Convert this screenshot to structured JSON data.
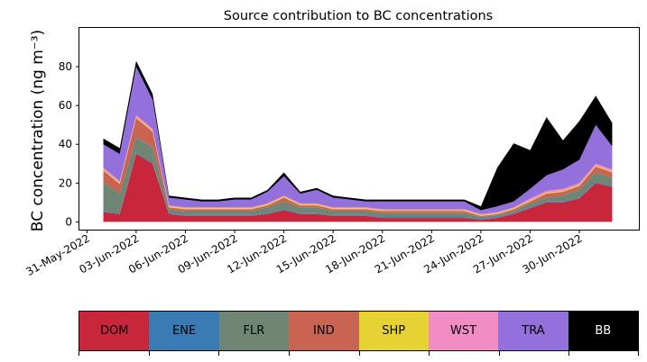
{
  "chart_data": {
    "type": "area",
    "title": "Source contribution to BC concentrations",
    "ylabel": "BC concentration (ng m⁻³)",
    "xlabel": "",
    "ylim": [
      -4,
      100
    ],
    "xlim": [
      "2022-05-30T13:00",
      "2022-07-03T15:00"
    ],
    "yticks": [
      0,
      20,
      40,
      60,
      80
    ],
    "xticks": [
      "2022-05-31",
      "2022-06-03",
      "2022-06-06",
      "2022-06-09",
      "2022-06-12",
      "2022-06-15",
      "2022-06-18",
      "2022-06-21",
      "2022-06-24",
      "2022-06-27",
      "2022-06-30"
    ],
    "xtick_labels": [
      "31-May-2022",
      "03-Jun-2022",
      "06-Jun-2022",
      "09-Jun-2022",
      "12-Jun-2022",
      "15-Jun-2022",
      "18-Jun-2022",
      "21-Jun-2022",
      "24-Jun-2022",
      "27-Jun-2022",
      "30-Jun-2022"
    ],
    "grid": false,
    "stack_order": [
      "DOM",
      "ENE",
      "FLR",
      "IND",
      "SHP",
      "WST",
      "TRA",
      "BB"
    ],
    "series_colors": {
      "DOM": "#c8263a",
      "ENE": "#3a7bb5",
      "FLR": "#6e8673",
      "IND": "#c96452",
      "SHP": "#e6d232",
      "WST": "#f18cc4",
      "TRA": "#9370db",
      "BB": "#000000"
    },
    "x": [
      "2022-06-01",
      "2022-06-02",
      "2022-06-03",
      "2022-06-04",
      "2022-06-05",
      "2022-06-06",
      "2022-06-07",
      "2022-06-08",
      "2022-06-09",
      "2022-06-10",
      "2022-06-11",
      "2022-06-12",
      "2022-06-13",
      "2022-06-14",
      "2022-06-15",
      "2022-06-16",
      "2022-06-17",
      "2022-06-18",
      "2022-06-19",
      "2022-06-20",
      "2022-06-21",
      "2022-06-22",
      "2022-06-23",
      "2022-06-24",
      "2022-06-25",
      "2022-06-26",
      "2022-06-27",
      "2022-06-28",
      "2022-06-29",
      "2022-06-30",
      "2022-07-01",
      "2022-07-02"
    ],
    "series": [
      {
        "name": "DOM",
        "values": [
          5,
          4,
          35,
          30,
          4,
          3,
          3,
          3,
          3,
          3,
          4,
          6,
          4,
          4,
          3,
          3,
          3,
          2,
          2,
          2,
          2,
          2,
          2,
          1,
          2,
          4,
          7,
          10,
          10,
          12,
          20,
          18
        ]
      },
      {
        "name": "ENE",
        "values": [
          0.5,
          0.5,
          0.5,
          0.5,
          0.5,
          0.5,
          0.5,
          0.5,
          0.5,
          0.5,
          0.5,
          0.5,
          0.5,
          0.5,
          0.5,
          0.5,
          0.5,
          0.5,
          0.5,
          0.5,
          0.5,
          0.5,
          0.5,
          0.5,
          0.5,
          0.5,
          0.5,
          0.5,
          0.5,
          0.5,
          0.5,
          0.5
        ]
      },
      {
        "name": "FLR",
        "values": [
          15,
          10,
          8,
          8,
          2,
          2,
          2,
          2,
          2,
          2,
          3,
          4,
          3,
          3,
          2,
          2,
          2,
          2,
          2,
          2,
          2,
          2,
          2,
          1,
          1,
          1,
          2,
          2,
          3,
          4,
          5,
          4
        ]
      },
      {
        "name": "IND",
        "values": [
          6,
          5,
          10,
          8,
          1,
          1,
          1,
          1,
          1,
          1,
          1,
          2,
          1,
          1,
          1,
          1,
          1,
          1,
          1,
          1,
          1,
          1,
          1,
          0.5,
          0.5,
          1,
          1,
          2,
          2,
          2,
          3,
          3
        ]
      },
      {
        "name": "SHP",
        "values": [
          0.5,
          0.5,
          0.5,
          0.5,
          0.5,
          0.5,
          0.5,
          0.5,
          0.5,
          0.5,
          0.5,
          0.5,
          0.5,
          0.5,
          0.5,
          0.5,
          0.5,
          0.5,
          0.5,
          0.5,
          0.5,
          0.5,
          0.5,
          0.5,
          0.5,
          0.5,
          0.5,
          0.5,
          0.5,
          0.5,
          0.5,
          0.5
        ]
      },
      {
        "name": "WST",
        "values": [
          1,
          1,
          1,
          1,
          0.5,
          0.5,
          0.5,
          0.5,
          0.5,
          0.5,
          0.5,
          0.5,
          0.5,
          0.5,
          0.5,
          0.5,
          0.5,
          0.5,
          0.5,
          0.5,
          0.5,
          0.5,
          0.5,
          0.5,
          0.5,
          0.5,
          1,
          1,
          1,
          1,
          1,
          1
        ]
      },
      {
        "name": "TRA",
        "values": [
          12,
          14,
          25,
          15,
          4,
          4,
          3,
          3,
          4,
          4,
          6,
          10,
          5,
          7,
          5,
          4,
          3,
          4,
          4,
          4,
          4,
          4,
          4,
          2,
          3,
          3,
          5,
          8,
          10,
          12,
          20,
          12
        ]
      },
      {
        "name": "BB",
        "values": [
          3,
          3,
          3,
          3,
          1,
          1,
          1,
          1,
          1,
          1,
          1,
          2,
          1,
          1,
          1,
          1,
          1,
          1,
          1,
          1,
          1,
          1,
          1,
          2,
          20,
          30,
          20,
          30,
          15,
          20,
          15,
          12
        ]
      }
    ],
    "legend_placement": "bottom colorbar"
  }
}
